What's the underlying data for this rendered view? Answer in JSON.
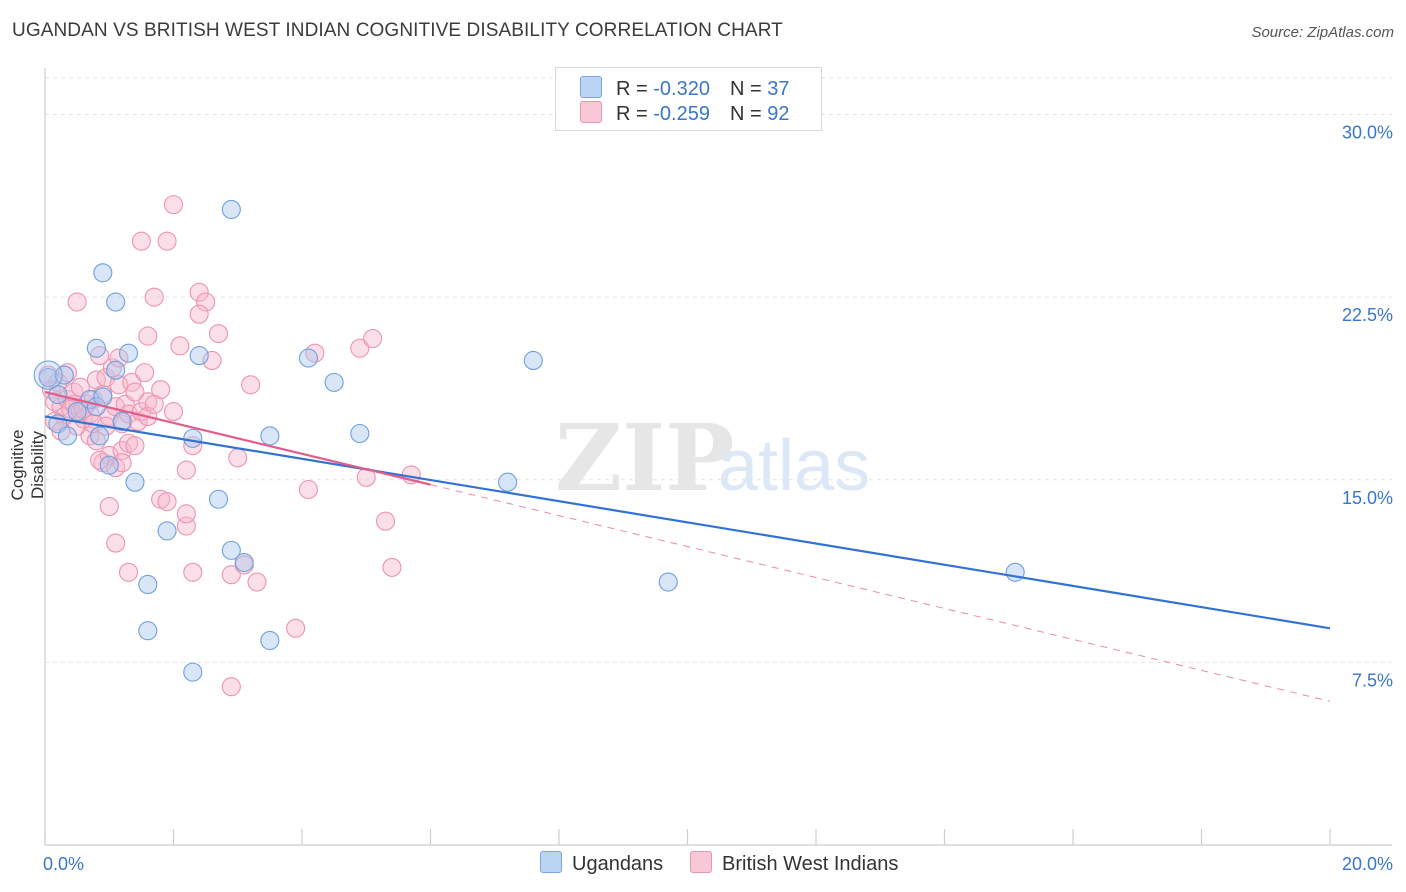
{
  "title": "UGANDAN VS BRITISH WEST INDIAN COGNITIVE DISABILITY CORRELATION CHART",
  "source": "Source: ZipAtlas.com",
  "legend": {
    "rows": [
      {
        "r_label": "R = ",
        "r_value": "-0.320",
        "n_label": "N = ",
        "n_value": "37",
        "color": "#a9c8f0"
      },
      {
        "r_label": "R = ",
        "r_value": "-0.259",
        "n_label": "N = ",
        "n_value": "92",
        "color": "#f7b9cb"
      }
    ]
  },
  "bottom_legend": [
    {
      "label": "Ugandans",
      "color": "#a9c8f0"
    },
    {
      "label": "British West Indians",
      "color": "#f7b9cb"
    }
  ],
  "watermark": {
    "zip": "ZIP",
    "atlas": "atlas"
  },
  "chart_data": {
    "type": "scatter",
    "title": "UGANDAN VS BRITISH WEST INDIAN COGNITIVE DISABILITY CORRELATION CHART",
    "xlabel": "",
    "ylabel": "Cognitive Disability",
    "xlim": [
      0,
      20
    ],
    "ylim": [
      0,
      31.5
    ],
    "x_tick_labels": [
      "0.0%",
      "20.0%"
    ],
    "y_ticks": [
      7.5,
      15.0,
      22.5,
      30.0
    ],
    "y_tick_labels": [
      "7.5%",
      "15.0%",
      "22.5%",
      "30.0%"
    ],
    "grid": true,
    "legend_position": "top-center",
    "series": [
      {
        "name": "Ugandans",
        "color": "#3b78d4",
        "fill": "#a9c8f0",
        "points": [
          [
            0.05,
            19.2
          ],
          [
            0.2,
            18.5
          ],
          [
            0.3,
            19.3
          ],
          [
            0.2,
            17.3
          ],
          [
            0.35,
            16.8
          ],
          [
            0.5,
            17.8
          ],
          [
            0.7,
            18.3
          ],
          [
            0.8,
            18.0
          ],
          [
            0.85,
            16.8
          ],
          [
            0.9,
            18.4
          ],
          [
            0.8,
            20.4
          ],
          [
            0.9,
            23.5
          ],
          [
            1.1,
            22.3
          ],
          [
            1.0,
            15.6
          ],
          [
            1.1,
            19.5
          ],
          [
            1.2,
            17.4
          ],
          [
            1.3,
            20.2
          ],
          [
            1.4,
            14.9
          ],
          [
            1.6,
            10.7
          ],
          [
            1.6,
            8.8
          ],
          [
            1.9,
            12.9
          ],
          [
            2.3,
            16.7
          ],
          [
            2.4,
            20.1
          ],
          [
            2.7,
            14.2
          ],
          [
            2.9,
            26.1
          ],
          [
            2.9,
            12.1
          ],
          [
            3.1,
            11.6
          ],
          [
            3.5,
            8.4
          ],
          [
            3.5,
            16.8
          ],
          [
            4.1,
            20.0
          ],
          [
            4.5,
            19.0
          ],
          [
            4.9,
            16.9
          ],
          [
            7.2,
            14.9
          ],
          [
            7.6,
            19.9
          ],
          [
            9.7,
            10.8
          ],
          [
            15.1,
            11.2
          ],
          [
            2.3,
            7.1
          ]
        ],
        "trend": {
          "x": [
            0,
            20
          ],
          "y": [
            17.6,
            8.9
          ],
          "style": "solid"
        }
      },
      {
        "name": "British West Indians",
        "color": "#e4628f",
        "fill": "#f7b9cb",
        "points": [
          [
            0.05,
            19.3
          ],
          [
            0.1,
            18.7
          ],
          [
            0.15,
            18.2
          ],
          [
            0.2,
            19.0
          ],
          [
            0.25,
            18.0
          ],
          [
            0.3,
            17.6
          ],
          [
            0.35,
            18.3
          ],
          [
            0.4,
            17.9
          ],
          [
            0.45,
            18.1
          ],
          [
            0.5,
            17.2
          ],
          [
            0.55,
            17.8
          ],
          [
            0.6,
            17.5
          ],
          [
            0.65,
            18.1
          ],
          [
            0.7,
            17.7
          ],
          [
            0.75,
            18.3
          ],
          [
            0.8,
            19.1
          ],
          [
            0.85,
            20.1
          ],
          [
            0.9,
            18.5
          ],
          [
            0.95,
            19.2
          ],
          [
            1.0,
            17.6
          ],
          [
            1.05,
            19.6
          ],
          [
            1.1,
            18.0
          ],
          [
            1.15,
            18.9
          ],
          [
            1.2,
            17.3
          ],
          [
            1.25,
            18.1
          ],
          [
            1.3,
            17.7
          ],
          [
            1.35,
            19.0
          ],
          [
            1.4,
            18.6
          ],
          [
            1.45,
            17.4
          ],
          [
            1.5,
            17.8
          ],
          [
            1.55,
            19.4
          ],
          [
            1.6,
            18.2
          ],
          [
            0.5,
            22.3
          ],
          [
            0.6,
            17.9
          ],
          [
            0.7,
            16.8
          ],
          [
            0.8,
            16.6
          ],
          [
            0.9,
            15.7
          ],
          [
            1.0,
            16.0
          ],
          [
            1.1,
            15.5
          ],
          [
            1.2,
            16.2
          ],
          [
            1.3,
            16.5
          ],
          [
            1.0,
            13.9
          ],
          [
            1.1,
            12.4
          ],
          [
            1.3,
            11.2
          ],
          [
            1.5,
            24.8
          ],
          [
            1.6,
            20.9
          ],
          [
            1.7,
            22.5
          ],
          [
            1.8,
            14.2
          ],
          [
            1.9,
            24.8
          ],
          [
            2.0,
            26.3
          ],
          [
            2.1,
            20.5
          ],
          [
            2.2,
            13.1
          ],
          [
            2.2,
            13.6
          ],
          [
            2.3,
            11.2
          ],
          [
            2.4,
            22.7
          ],
          [
            2.5,
            22.3
          ],
          [
            2.4,
            21.8
          ],
          [
            2.6,
            19.9
          ],
          [
            2.7,
            21.0
          ],
          [
            2.9,
            11.1
          ],
          [
            3.0,
            15.9
          ],
          [
            3.1,
            11.5
          ],
          [
            3.2,
            18.9
          ],
          [
            3.3,
            10.8
          ],
          [
            3.9,
            8.9
          ],
          [
            4.1,
            14.6
          ],
          [
            4.2,
            20.2
          ],
          [
            4.9,
            20.4
          ],
          [
            5.0,
            15.1
          ],
          [
            5.1,
            20.8
          ],
          [
            5.3,
            13.3
          ],
          [
            5.4,
            11.4
          ],
          [
            5.7,
            15.2
          ],
          [
            2.9,
            6.5
          ],
          [
            0.15,
            17.4
          ],
          [
            0.45,
            18.6
          ],
          [
            0.75,
            17.3
          ],
          [
            1.2,
            15.7
          ],
          [
            1.4,
            16.4
          ],
          [
            1.6,
            17.6
          ],
          [
            1.8,
            18.7
          ],
          [
            2.0,
            17.8
          ],
          [
            2.2,
            15.4
          ],
          [
            1.9,
            14.1
          ],
          [
            0.95,
            17.2
          ],
          [
            0.35,
            19.4
          ],
          [
            0.25,
            17.0
          ],
          [
            1.7,
            18.1
          ],
          [
            2.3,
            16.4
          ],
          [
            0.55,
            18.8
          ],
          [
            1.15,
            20.0
          ],
          [
            0.85,
            15.8
          ]
        ],
        "trend": {
          "x": [
            0,
            6
          ],
          "y": [
            18.6,
            14.8
          ],
          "style": "solid"
        },
        "trend_extension": {
          "x": [
            6,
            20
          ],
          "y": [
            14.8,
            5.9
          ],
          "style": "dashed"
        }
      }
    ]
  }
}
